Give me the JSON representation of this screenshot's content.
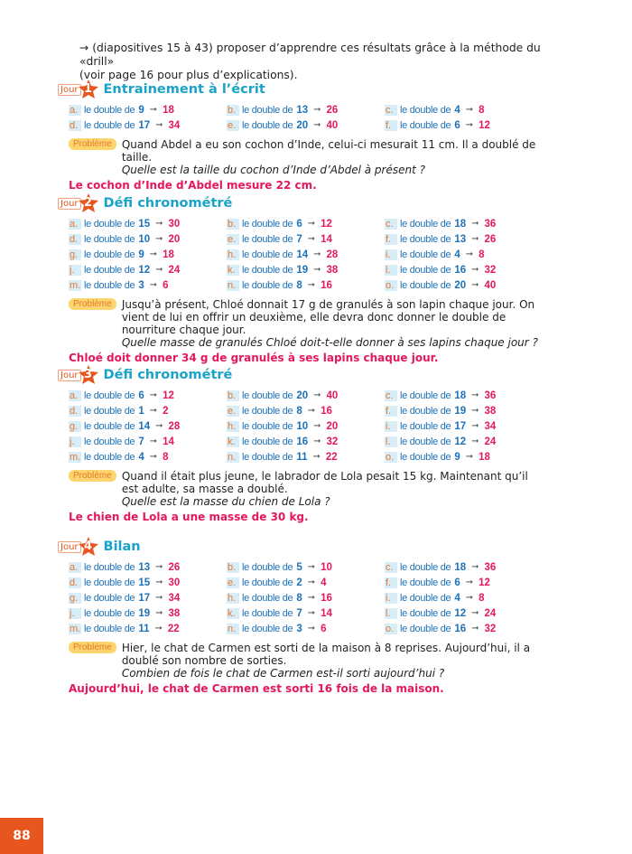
{
  "intro": {
    "line1": "→ (diapositives 15 à 43) proposer d’apprendre ces résultats grâce à la méthode du «drill»",
    "line2": "(voir page 16 pour plus d’explications)."
  },
  "jour_label": "Jour",
  "item_label": "le double de",
  "problem_label": "Problème",
  "page_number": "88",
  "colors": {
    "title": "#1aa3c9",
    "result": "#e5175e",
    "number": "#1d71b8",
    "accent": "#e8561f",
    "badge": "#fcd56f"
  },
  "sections": [
    {
      "day": "1",
      "title": "Entrainement à l’écrit",
      "items": [
        [
          "a.",
          "9",
          "18"
        ],
        [
          "b.",
          "13",
          "26"
        ],
        [
          "c.",
          "4",
          "8"
        ],
        [
          "d.",
          "17",
          "34"
        ],
        [
          "e.",
          "20",
          "40"
        ],
        [
          "f.",
          "6",
          "12"
        ]
      ],
      "problem": [
        "Quand Abdel a eu son cochon d’Inde, celui-ci mesurait 11 cm. Il a doublé de taille."
      ],
      "question": "Quelle est la taille du cochon d’Inde d’Abdel à présent ?",
      "answer": "Le cochon d’Inde d’Abdel mesure 22 cm."
    },
    {
      "day": "2",
      "title": "Défi chronométré",
      "items": [
        [
          "a.",
          "15",
          "30"
        ],
        [
          "b.",
          "6",
          "12"
        ],
        [
          "c.",
          "18",
          "36"
        ],
        [
          "d.",
          "10",
          "20"
        ],
        [
          "e.",
          "7",
          "14"
        ],
        [
          "f.",
          "13",
          "26"
        ],
        [
          "g.",
          "9",
          "18"
        ],
        [
          "h.",
          "14",
          "28"
        ],
        [
          "i.",
          "4",
          "8"
        ],
        [
          "j.",
          "12",
          "24"
        ],
        [
          "k.",
          "19",
          "38"
        ],
        [
          "l.",
          "16",
          "32"
        ],
        [
          "m.",
          "3",
          "6"
        ],
        [
          "n.",
          "8",
          "16"
        ],
        [
          "o.",
          "20",
          "40"
        ]
      ],
      "problem": [
        "Jusqu’à présent, Chloé donnait 17 g de granulés à son lapin chaque jour. On vient de lui en offrir un deuxième, elle devra donc donner le double de nourriture chaque jour."
      ],
      "question": "Quelle masse de granulés Chloé doit-t-elle donner à ses lapins chaque jour ?",
      "answer": "Chloé doit donner 34 g de granulés à ses lapins chaque jour."
    },
    {
      "day": "3",
      "title": "Défi chronométré",
      "items": [
        [
          "a.",
          "6",
          "12"
        ],
        [
          "b.",
          "20",
          "40"
        ],
        [
          "c.",
          "18",
          "36"
        ],
        [
          "d.",
          "1",
          "2"
        ],
        [
          "e.",
          "8",
          "16"
        ],
        [
          "f.",
          "19",
          "38"
        ],
        [
          "g.",
          "14",
          "28"
        ],
        [
          "h.",
          "10",
          "20"
        ],
        [
          "i.",
          "17",
          "34"
        ],
        [
          "j.",
          "7",
          "14"
        ],
        [
          "k.",
          "16",
          "32"
        ],
        [
          "l.",
          "12",
          "24"
        ],
        [
          "m.",
          "4",
          "8"
        ],
        [
          "n.",
          "11",
          "22"
        ],
        [
          "o.",
          "9",
          "18"
        ]
      ],
      "problem": [
        "Quand il était plus jeune, le labrador de Lola pesait 15 kg. Maintenant qu’il est adulte, sa masse a doublé."
      ],
      "question": "Quelle est la masse du chien de Lola ?",
      "answer": "Le chien de Lola a une masse de 30 kg."
    },
    {
      "day": "4",
      "title": "Bilan",
      "items": [
        [
          "a.",
          "13",
          "26"
        ],
        [
          "b.",
          "5",
          "10"
        ],
        [
          "c.",
          "18",
          "36"
        ],
        [
          "d.",
          "15",
          "30"
        ],
        [
          "e.",
          "2",
          "4"
        ],
        [
          "f.",
          "6",
          "12"
        ],
        [
          "g.",
          "17",
          "34"
        ],
        [
          "h.",
          "8",
          "16"
        ],
        [
          "i.",
          "4",
          "8"
        ],
        [
          "j.",
          "19",
          "38"
        ],
        [
          "k.",
          "7",
          "14"
        ],
        [
          "l.",
          "12",
          "24"
        ],
        [
          "m.",
          "11",
          "22"
        ],
        [
          "n.",
          "3",
          "6"
        ],
        [
          "o.",
          "16",
          "32"
        ]
      ],
      "problem": [
        "Hier, le chat de Carmen est sorti de la maison à 8 reprises. Aujourd’hui, il a doublé son nombre de sorties."
      ],
      "question": "Combien de fois le chat de Carmen est-il sorti aujourd’hui ?",
      "answer": "Aujourd’hui, le chat de Carmen est sorti 16 fois de la maison."
    }
  ]
}
